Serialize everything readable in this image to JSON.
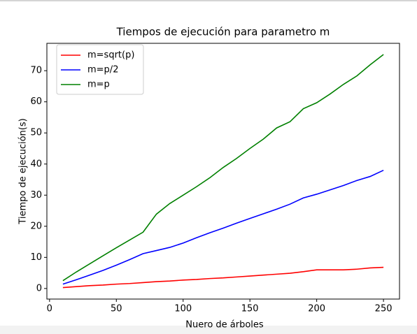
{
  "chart_data": {
    "type": "line",
    "title": "Tiempos de ejecución para parametro m",
    "xlabel": "Nuero de árboles",
    "ylabel": "Tiempo de ejecución(s)",
    "x": [
      10,
      20,
      30,
      40,
      50,
      60,
      70,
      80,
      90,
      100,
      110,
      120,
      130,
      140,
      150,
      160,
      170,
      180,
      190,
      200,
      210,
      220,
      230,
      240,
      250
    ],
    "series": [
      {
        "name": "m=sqrt(p)",
        "color": "#ff0000",
        "values": [
          0.3,
          0.6,
          0.9,
          1.1,
          1.4,
          1.6,
          1.9,
          2.2,
          2.4,
          2.7,
          2.9,
          3.2,
          3.4,
          3.7,
          4.0,
          4.3,
          4.6,
          4.9,
          5.4,
          6.0,
          6.0,
          6.0,
          6.2,
          6.6,
          6.8
        ]
      },
      {
        "name": "m=p/2",
        "color": "#0000ff",
        "values": [
          1.4,
          2.8,
          4.3,
          5.8,
          7.5,
          9.3,
          11.2,
          12.2,
          13.2,
          14.6,
          16.3,
          17.9,
          19.4,
          21.0,
          22.5,
          24.0,
          25.5,
          27.1,
          29.1,
          30.3,
          31.7,
          33.1,
          34.7,
          36.0,
          38.0
        ]
      },
      {
        "name": "m=p",
        "color": "#008000",
        "values": [
          2.5,
          5.3,
          7.9,
          10.5,
          13.1,
          15.6,
          18.1,
          23.9,
          27.3,
          30.0,
          32.7,
          35.6,
          38.9,
          41.8,
          45.0,
          48.0,
          51.6,
          53.6,
          57.8,
          59.7,
          62.5,
          65.6,
          68.3,
          71.9,
          75.2
        ]
      }
    ],
    "xlim": [
      -2,
      262
    ],
    "xticks": [
      0,
      50,
      100,
      150,
      200,
      250
    ],
    "ylim": [
      -3.4,
      78.8
    ],
    "yticks": [
      0,
      10,
      20,
      30,
      40,
      50,
      60,
      70
    ],
    "legend": "upper left"
  }
}
